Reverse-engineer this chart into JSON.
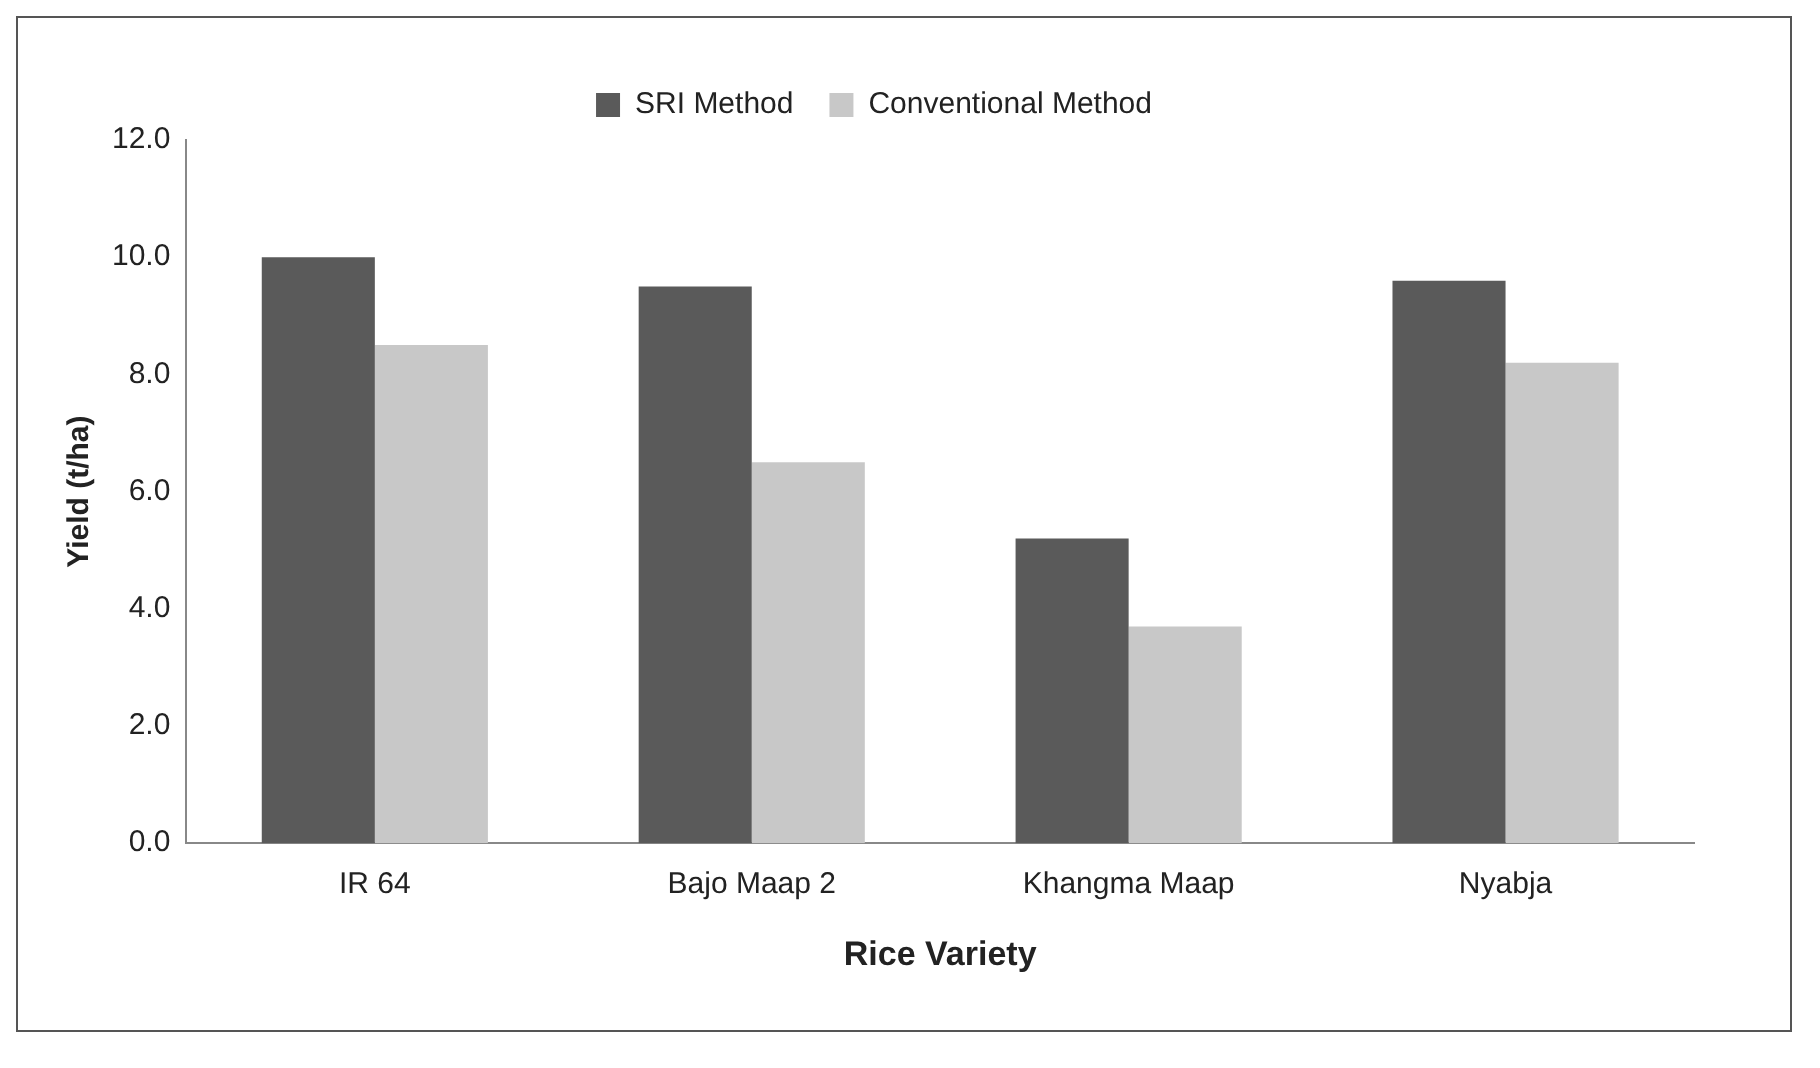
{
  "chart_data": {
    "type": "bar",
    "xlabel": "Rice Variety",
    "ylabel": "Yield (t/ha)",
    "categories": [
      "IR 64",
      "Bajo Maap 2",
      "Khangma Maap",
      "Nyabja"
    ],
    "series": [
      {
        "name": "SRI Method",
        "color": "#5a5a5a",
        "values": [
          10.0,
          9.5,
          5.2,
          9.6
        ]
      },
      {
        "name": "Conventional Method",
        "color": "#c8c8c8",
        "values": [
          8.5,
          6.5,
          3.7,
          8.2
        ]
      }
    ],
    "ylim": [
      0,
      12
    ],
    "yticks": [
      {
        "value": 0,
        "label": "0.0"
      },
      {
        "value": 2,
        "label": "2.0"
      },
      {
        "value": 4,
        "label": "4.0"
      },
      {
        "value": 6,
        "label": "6.0"
      },
      {
        "value": 8,
        "label": "8.0"
      },
      {
        "value": 10,
        "label": "10.0"
      },
      {
        "value": 12,
        "label": "12.0"
      }
    ],
    "grid": false,
    "legend": "top"
  }
}
